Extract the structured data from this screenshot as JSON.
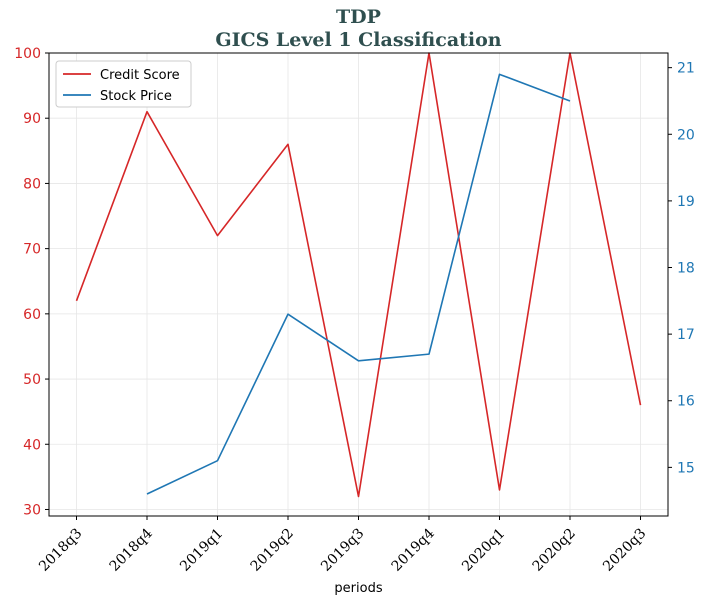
{
  "chart_data": {
    "type": "line",
    "title": "TDP",
    "subtitle": "GICS Level 1 Classification",
    "xlabel": "periods",
    "ylabel_left": "",
    "ylabel_right": "",
    "categories": [
      "2018q3",
      "2018q4",
      "2019q1",
      "2019q2",
      "2019q3",
      "2019q4",
      "2020q1",
      "2020q2",
      "2020q3"
    ],
    "ylim_left": [
      29,
      100
    ],
    "yticks_left": [
      30,
      40,
      50,
      60,
      70,
      80,
      90,
      100
    ],
    "ylim_right": [
      14.27,
      21.22
    ],
    "yticks_right": [
      15,
      16,
      17,
      18,
      19,
      20,
      21
    ],
    "grid": true,
    "legend_position": "upper-left",
    "series": [
      {
        "name": "Credit Score",
        "axis": "left",
        "color": "#d62728",
        "values": [
          62,
          91,
          72,
          86,
          32,
          100,
          33,
          100,
          46
        ]
      },
      {
        "name": "Stock Price",
        "axis": "right",
        "color": "#1f77b4",
        "values": [
          null,
          14.6,
          15.1,
          17.3,
          16.6,
          16.7,
          20.9,
          20.5,
          null
        ]
      }
    ]
  }
}
